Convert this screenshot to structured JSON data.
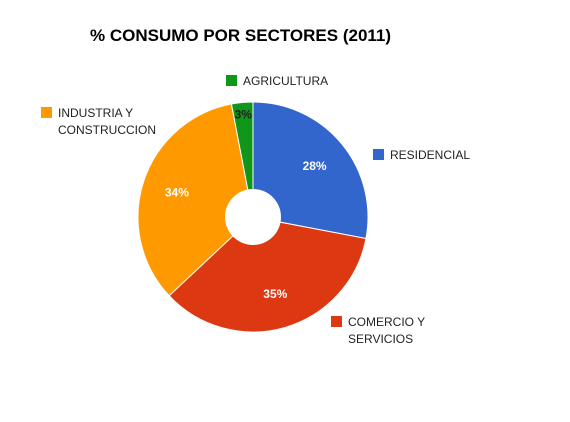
{
  "chart_data": {
    "type": "pie",
    "title": "% CONSUMO POR SECTORES (2011)",
    "slices": [
      {
        "name": "RESIDENCIAL",
        "value": 28,
        "label": "28%",
        "color": "#3366cc",
        "label_color": "#ffffff",
        "legend_lines": [
          "RESIDENCIAL"
        ]
      },
      {
        "name": "COMERCIO Y SERVICIOS",
        "value": 35,
        "label": "35%",
        "color": "#dc3912",
        "label_color": "#ffffff",
        "legend_lines": [
          "COMERCIO Y",
          "SERVICIOS"
        ]
      },
      {
        "name": "INDUSTRIA Y CONSTRUCCION",
        "value": 34,
        "label": "34%",
        "color": "#ff9900",
        "label_color": "#ffffff",
        "legend_lines": [
          "INDUSTRIA Y",
          "CONSTRUCCION"
        ]
      },
      {
        "name": "AGRICULTURA",
        "value": 3,
        "label": "3%",
        "color": "#109618",
        "label_color": "#222222",
        "legend_lines": [
          "AGRICULTURA"
        ]
      }
    ],
    "donut": true,
    "legend_position": "labeled"
  }
}
